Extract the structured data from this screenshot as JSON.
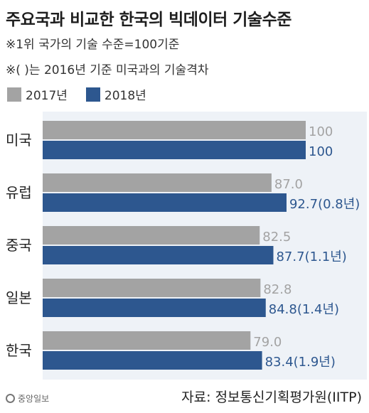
{
  "title": "주요국과 비교한 한국의 빅데이터 기술수준",
  "notes": [
    "※1위 국가의 기술 수준=100기준",
    "※( )는 2016년 기준 미국과의 기술격차"
  ],
  "source": "자료: 정보통신기획평가원(IITP)",
  "logo_text": "중앙일보",
  "colors": {
    "series_2017": "#a3a3a3",
    "series_2018": "#2d578f",
    "label_2018": "#2d578f",
    "label_2017": "#a3a3a3",
    "plot_bg": "#eef2f7"
  },
  "chart_data": {
    "type": "bar",
    "orientation": "horizontal",
    "title": "주요국과 비교한 한국의 빅데이터 기술수준",
    "categories": [
      "미국",
      "유럽",
      "중국",
      "일본",
      "한국"
    ],
    "series": [
      {
        "name": "2017년",
        "values": [
          100,
          87.0,
          82.5,
          82.8,
          79.0
        ],
        "labels": [
          "100",
          "87.0",
          "82.5",
          "82.8",
          "79.0"
        ]
      },
      {
        "name": "2018년",
        "values": [
          100,
          92.7,
          87.7,
          84.8,
          83.4
        ],
        "labels": [
          "100",
          "92.7(0.8년)",
          "87.7(1.1년)",
          "84.8(1.4년)",
          "83.4(1.9년)"
        ]
      }
    ],
    "legend_position": "top-left",
    "grid": false
  }
}
